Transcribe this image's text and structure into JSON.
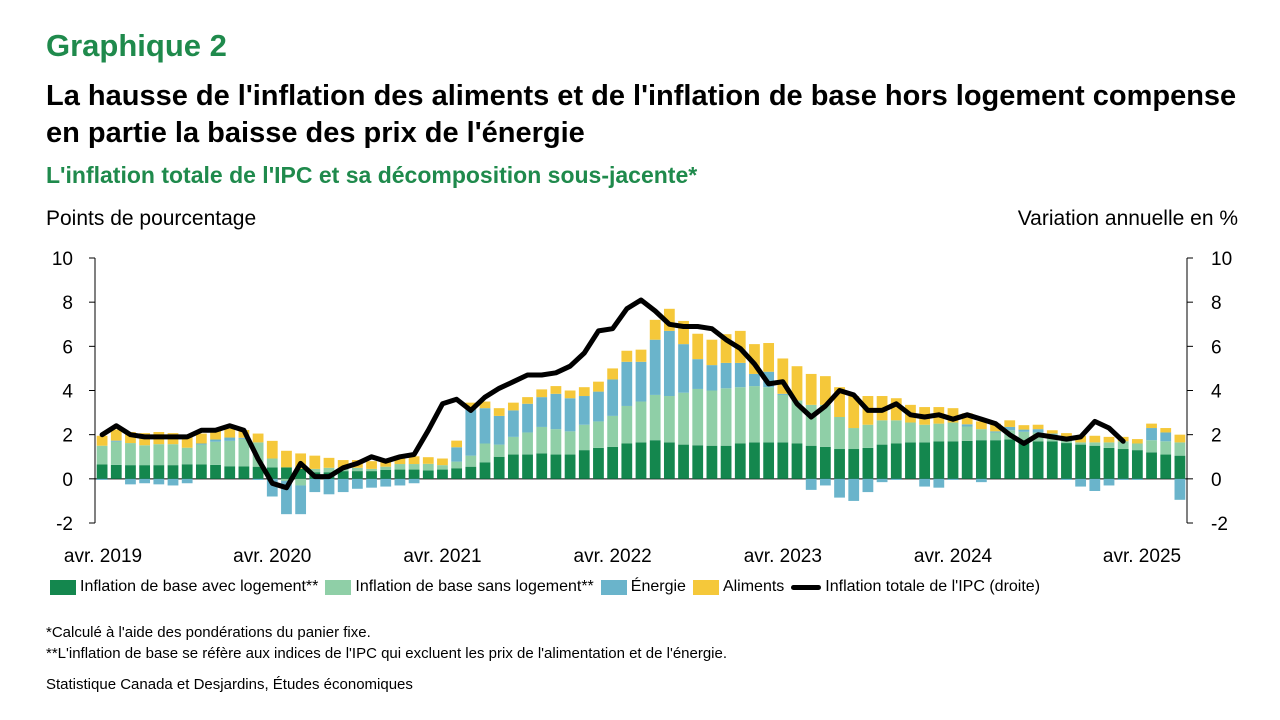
{
  "header": {
    "chart_number": "Graphique 2",
    "title": "La hausse de l'inflation des aliments et de l'inflation de base hors logement compense en partie la baisse des prix de l'énergie",
    "subtitle": "L'inflation totale de l'IPC et sa décomposition sous-jacente*"
  },
  "footer": {
    "note1": "*Calculé à l'aide des pondérations du panier fixe.",
    "note2": "**L'inflation de base se réfère aux indices de l'IPC qui excluent les prix de l'alimentation et de l'énergie.",
    "source": "Statistique Canada et Desjardins, Études économiques"
  },
  "colors": {
    "core_with_housing": "#14874e",
    "core_without_housing": "#8fcfa7",
    "energy": "#6ab4cb",
    "food": "#f5c83a",
    "total": "#000000"
  },
  "chart_data": {
    "type": "bar",
    "stacked": true,
    "ylabel_left": "Points de pourcentage",
    "ylabel_right": "Variation annuelle en %",
    "ylim": [
      -2,
      10
    ],
    "yticks": [
      -2,
      0,
      2,
      4,
      6,
      8,
      10
    ],
    "x_tick_labels": [
      "avr. 2019",
      "avr. 2020",
      "avr. 2021",
      "avr. 2022",
      "avr. 2023",
      "avr. 2024",
      "avr. 2025"
    ],
    "x_start": "2019-04",
    "x_end": "2025-04",
    "series": [
      {
        "name": "Inflation de base avec logement**",
        "kind": "bar",
        "values": [
          0.65,
          0.63,
          0.62,
          0.62,
          0.62,
          0.62,
          0.66,
          0.65,
          0.63,
          0.57,
          0.56,
          0.55,
          0.52,
          0.52,
          0.45,
          0.3,
          0.3,
          0.35,
          0.35,
          0.35,
          0.4,
          0.42,
          0.42,
          0.38,
          0.42,
          0.48,
          0.55,
          0.75,
          1.0,
          1.1,
          1.1,
          1.15,
          1.1,
          1.1,
          1.3,
          1.4,
          1.45,
          1.6,
          1.65,
          1.75,
          1.65,
          1.55,
          1.52,
          1.5,
          1.5,
          1.6,
          1.65,
          1.65,
          1.65,
          1.6,
          1.5,
          1.45,
          1.35,
          1.35,
          1.4,
          1.55,
          1.6,
          1.65,
          1.65,
          1.7,
          1.7,
          1.72,
          1.75,
          1.75,
          1.78,
          1.75,
          1.7,
          1.7,
          1.62,
          1.55,
          1.5,
          1.4,
          1.35,
          1.3,
          1.2,
          1.1,
          1.05
        ]
      },
      {
        "name": "Inflation de base sans logement**",
        "kind": "bar",
        "values": [
          0.85,
          1.05,
          1.0,
          0.9,
          0.95,
          0.95,
          0.75,
          0.9,
          1.05,
          1.15,
          1.25,
          1.1,
          0.4,
          -0.1,
          -0.3,
          0.15,
          0.2,
          0.15,
          0.15,
          0.1,
          0.15,
          0.25,
          0.25,
          0.3,
          0.2,
          0.3,
          0.5,
          0.85,
          0.55,
          0.8,
          1.0,
          1.2,
          1.15,
          1.05,
          1.15,
          1.2,
          1.4,
          1.7,
          1.85,
          2.05,
          2.1,
          2.35,
          2.55,
          2.5,
          2.6,
          2.55,
          2.55,
          2.5,
          2.15,
          1.95,
          1.85,
          1.9,
          1.45,
          0.95,
          1.05,
          1.1,
          1.05,
          0.9,
          0.8,
          0.8,
          0.85,
          0.65,
          0.5,
          0.35,
          0.42,
          0.38,
          0.4,
          0.3,
          0.25,
          0.1,
          0.15,
          0.25,
          0.35,
          0.3,
          0.55,
          0.6,
          0.6
        ]
      },
      {
        "name": "Énergie",
        "kind": "bar",
        "values": [
          -0.05,
          0.05,
          -0.25,
          -0.2,
          -0.25,
          -0.3,
          -0.2,
          0.05,
          0.1,
          0.15,
          0.05,
          -0.05,
          -0.8,
          -1.5,
          -1.3,
          -0.6,
          -0.7,
          -0.6,
          -0.45,
          -0.4,
          -0.35,
          -0.3,
          -0.2,
          0.0,
          0.0,
          0.65,
          2.1,
          1.6,
          1.3,
          1.2,
          1.3,
          1.35,
          1.6,
          1.5,
          1.3,
          1.35,
          1.65,
          2.0,
          1.8,
          2.5,
          2.95,
          2.2,
          1.35,
          1.15,
          1.15,
          1.1,
          0.55,
          0.7,
          0.05,
          0.0,
          -0.5,
          -0.3,
          -0.85,
          -1.0,
          -0.6,
          -0.15,
          -0.05,
          0.0,
          -0.35,
          -0.4,
          -0.05,
          0.1,
          -0.15,
          0.05,
          0.15,
          0.1,
          0.15,
          0.05,
          -0.05,
          -0.35,
          -0.55,
          -0.3,
          -0.05,
          -0.05,
          0.55,
          0.4,
          -0.95
        ]
      },
      {
        "name": "Aliments",
        "kind": "bar",
        "values": [
          0.45,
          0.5,
          0.5,
          0.55,
          0.55,
          0.5,
          0.55,
          0.45,
          0.45,
          0.4,
          0.35,
          0.4,
          0.8,
          0.75,
          0.7,
          0.6,
          0.45,
          0.35,
          0.35,
          0.35,
          0.35,
          0.38,
          0.35,
          0.3,
          0.3,
          0.3,
          0.3,
          0.3,
          0.35,
          0.35,
          0.3,
          0.35,
          0.35,
          0.35,
          0.4,
          0.45,
          0.5,
          0.5,
          0.55,
          0.9,
          1.0,
          1.05,
          1.15,
          1.15,
          1.3,
          1.45,
          1.35,
          1.3,
          1.6,
          1.55,
          1.4,
          1.3,
          1.35,
          1.45,
          1.3,
          1.1,
          1.0,
          0.8,
          0.8,
          0.75,
          0.65,
          0.5,
          0.35,
          0.35,
          0.3,
          0.2,
          0.2,
          0.15,
          0.2,
          0.3,
          0.3,
          0.25,
          0.2,
          0.2,
          0.2,
          0.2,
          0.35
        ]
      },
      {
        "name": "Inflation totale de l'IPC (droite)",
        "kind": "line",
        "values": [
          2.0,
          2.4,
          2.0,
          1.9,
          1.9,
          1.9,
          1.9,
          2.2,
          2.2,
          2.4,
          2.2,
          0.9,
          -0.2,
          -0.4,
          0.7,
          0.1,
          0.1,
          0.5,
          0.7,
          1.0,
          0.8,
          1.0,
          1.1,
          2.2,
          3.4,
          3.6,
          3.1,
          3.7,
          4.1,
          4.4,
          4.7,
          4.7,
          4.8,
          5.1,
          5.7,
          6.7,
          6.8,
          7.7,
          8.1,
          7.6,
          7.0,
          6.9,
          6.9,
          6.8,
          6.3,
          5.9,
          5.2,
          4.3,
          4.4,
          3.4,
          2.8,
          3.3,
          4.0,
          3.8,
          3.1,
          3.1,
          3.4,
          2.9,
          2.8,
          2.9,
          2.7,
          2.9,
          2.7,
          2.5,
          2.0,
          1.6,
          2.0,
          1.9,
          1.8,
          1.9,
          2.6,
          2.3,
          1.7
        ]
      }
    ],
    "legend_position": "bottom",
    "grid": false
  }
}
